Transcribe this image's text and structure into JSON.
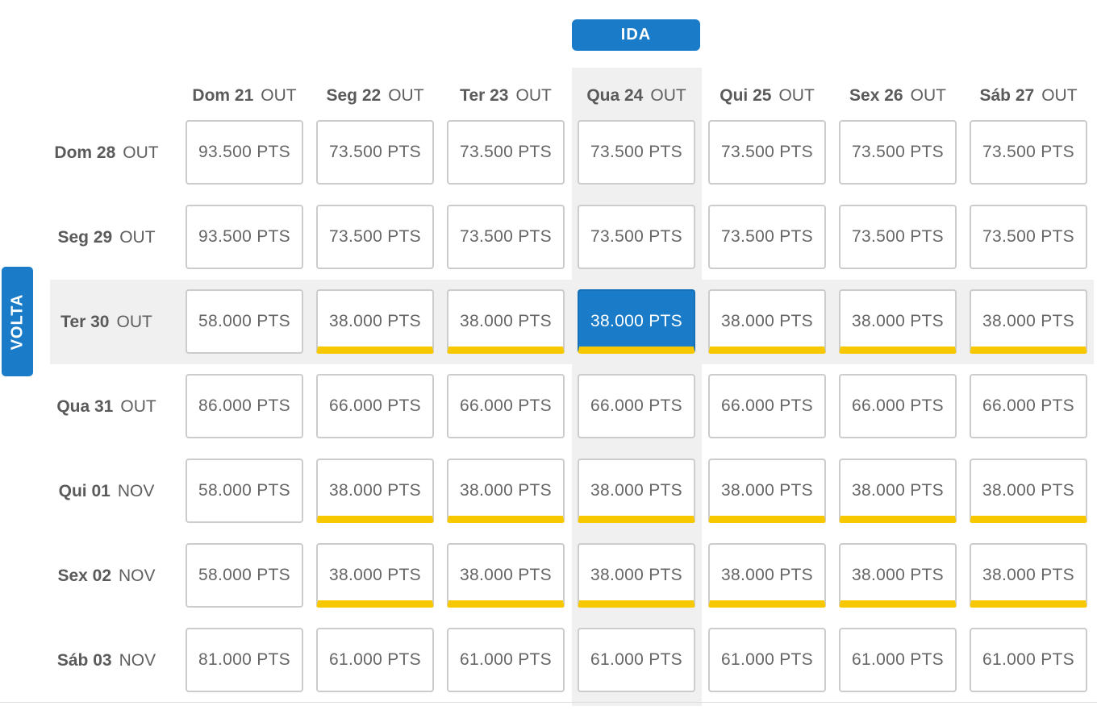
{
  "ida_label": "IDA",
  "volta_label": "VOLTA",
  "unit": "PTS",
  "columns": [
    {
      "day": "Dom 21",
      "month": "OUT"
    },
    {
      "day": "Seg 22",
      "month": "OUT"
    },
    {
      "day": "Ter 23",
      "month": "OUT"
    },
    {
      "day": "Qua 24",
      "month": "OUT"
    },
    {
      "day": "Qui 25",
      "month": "OUT"
    },
    {
      "day": "Sex 26",
      "month": "OUT"
    },
    {
      "day": "Sáb 27",
      "month": "OUT"
    }
  ],
  "rows": [
    {
      "day": "Dom 28",
      "month": "OUT",
      "prices": [
        "93.500",
        "73.500",
        "73.500",
        "73.500",
        "73.500",
        "73.500",
        "73.500"
      ],
      "promo": [
        false,
        false,
        false,
        false,
        false,
        false,
        false
      ]
    },
    {
      "day": "Seg 29",
      "month": "OUT",
      "prices": [
        "93.500",
        "73.500",
        "73.500",
        "73.500",
        "73.500",
        "73.500",
        "73.500"
      ],
      "promo": [
        false,
        false,
        false,
        false,
        false,
        false,
        false
      ]
    },
    {
      "day": "Ter 30",
      "month": "OUT",
      "prices": [
        "58.000",
        "38.000",
        "38.000",
        "38.000",
        "38.000",
        "38.000",
        "38.000"
      ],
      "promo": [
        false,
        true,
        true,
        true,
        true,
        true,
        true
      ]
    },
    {
      "day": "Qua 31",
      "month": "OUT",
      "prices": [
        "86.000",
        "66.000",
        "66.000",
        "66.000",
        "66.000",
        "66.000",
        "66.000"
      ],
      "promo": [
        false,
        false,
        false,
        false,
        false,
        false,
        false
      ]
    },
    {
      "day": "Qui 01",
      "month": "NOV",
      "prices": [
        "58.000",
        "38.000",
        "38.000",
        "38.000",
        "38.000",
        "38.000",
        "38.000"
      ],
      "promo": [
        false,
        true,
        true,
        true,
        true,
        true,
        true
      ]
    },
    {
      "day": "Sex 02",
      "month": "NOV",
      "prices": [
        "58.000",
        "38.000",
        "38.000",
        "38.000",
        "38.000",
        "38.000",
        "38.000"
      ],
      "promo": [
        false,
        true,
        true,
        true,
        true,
        true,
        true
      ]
    },
    {
      "day": "Sáb 03",
      "month": "NOV",
      "prices": [
        "81.000",
        "61.000",
        "61.000",
        "61.000",
        "61.000",
        "61.000",
        "61.000"
      ],
      "promo": [
        false,
        false,
        false,
        false,
        false,
        false,
        false
      ]
    }
  ],
  "selected": {
    "row": 2,
    "col": 3
  },
  "colors": {
    "accent": "#1a7cc8",
    "promo_bar": "#f7c800",
    "highlight_bg": "#f0f0f0"
  }
}
